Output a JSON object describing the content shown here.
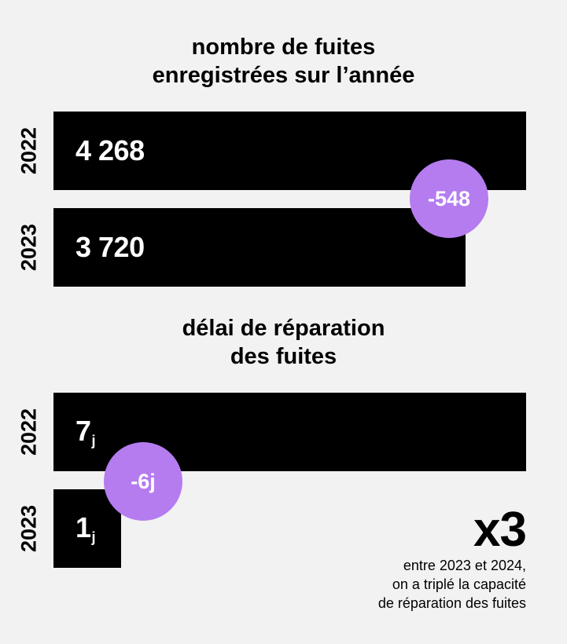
{
  "chart_data": [
    {
      "type": "bar",
      "title_lines": [
        "nombre de fuites",
        "enregistrées sur l’année"
      ],
      "categories": [
        "2022",
        "2023"
      ],
      "values": [
        4268,
        3720
      ],
      "value_labels": [
        "4 268",
        "3 720"
      ],
      "difference_label": "-548",
      "orientation": "horizontal"
    },
    {
      "type": "bar",
      "title_lines": [
        "délai de réparation",
        "des fuites"
      ],
      "categories": [
        "2022",
        "2023"
      ],
      "values": [
        7,
        1
      ],
      "value_labels": [
        "7",
        "1"
      ],
      "unit": "j",
      "difference_label": "-6j",
      "orientation": "horizontal"
    }
  ],
  "callout": {
    "value": "x3",
    "lines": [
      "entre 2023 et 2024,",
      "on a triplé la capacité",
      "de réparation des fuites"
    ]
  },
  "colors": {
    "bar": "#000000",
    "bubble": "#b57cf0",
    "background": "#f2f2f2"
  }
}
